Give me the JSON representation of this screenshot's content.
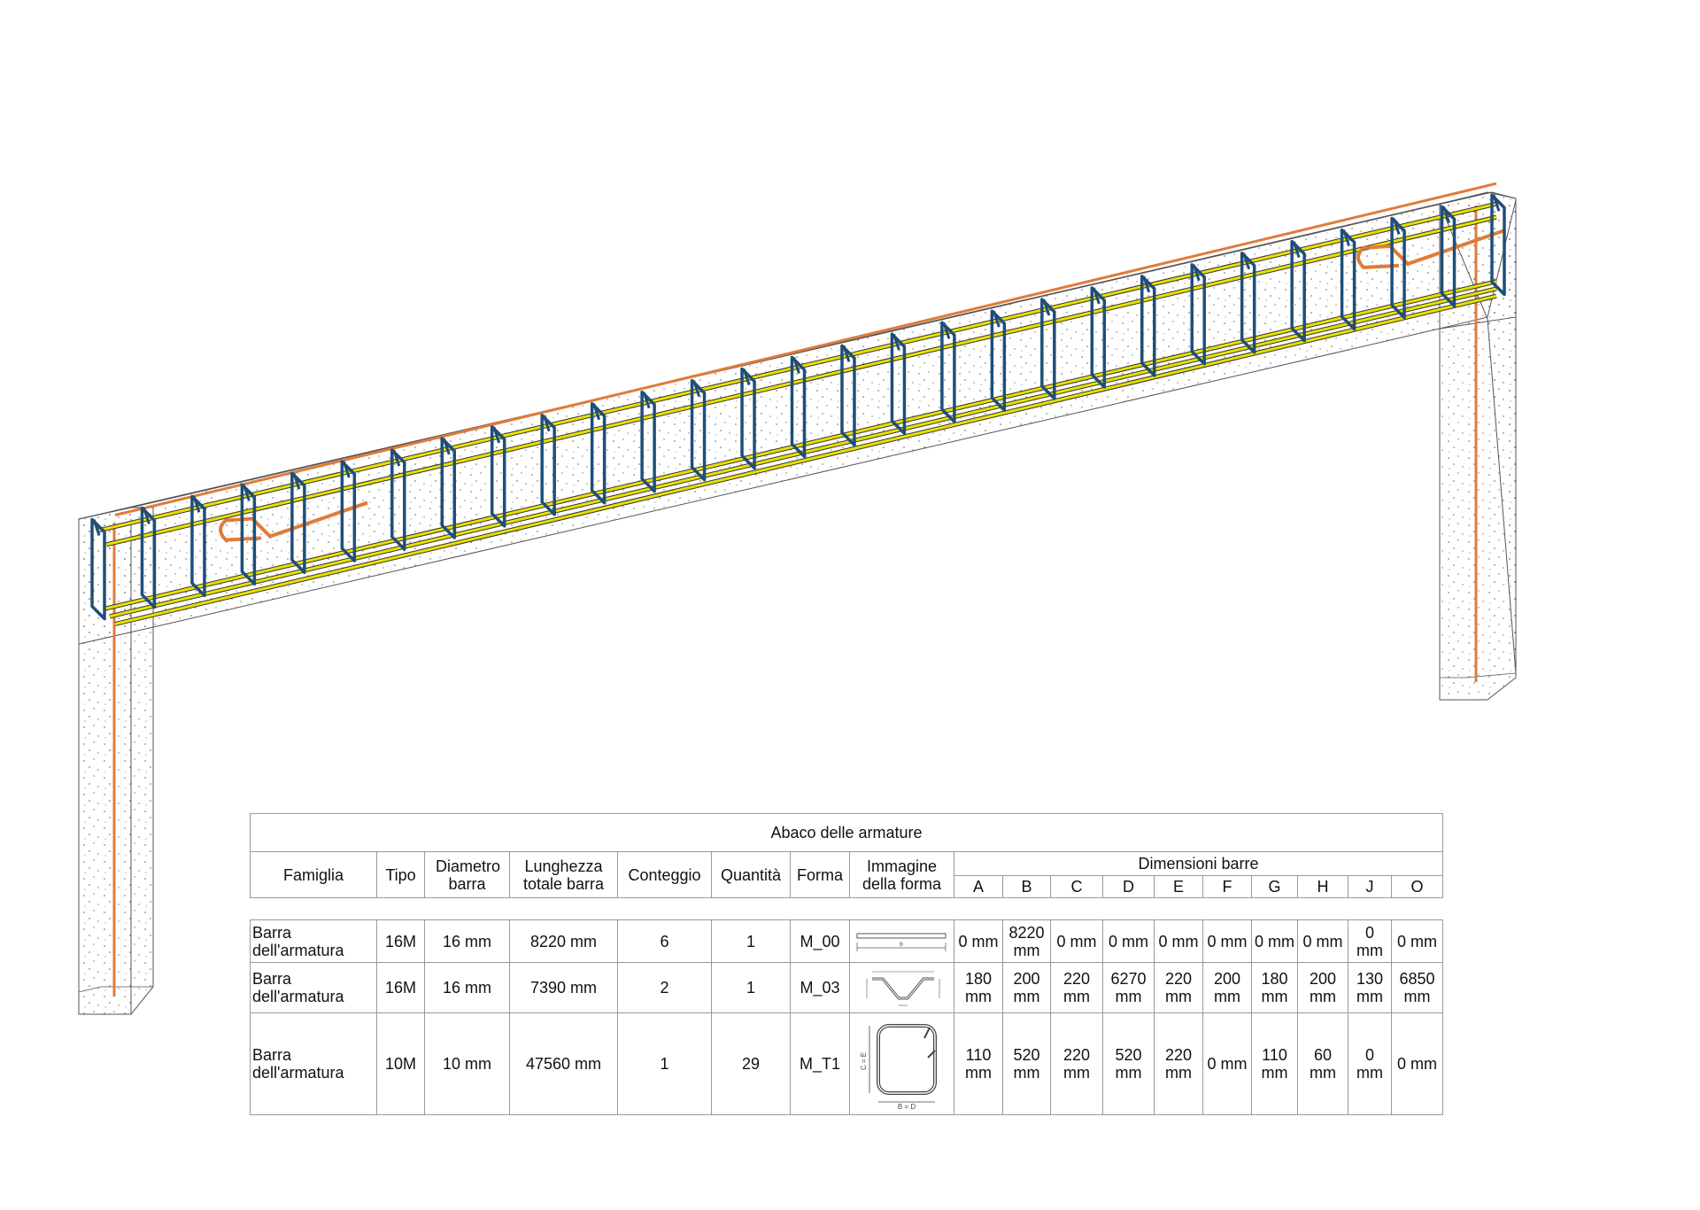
{
  "schedule": {
    "title": "Abaco delle armature",
    "headers": {
      "famiglia": "Famiglia",
      "tipo": "Tipo",
      "diametro": "Diametro barra",
      "lunghezza": "Lunghezza totale barra",
      "conteggio": "Conteggio",
      "quantita": "Quantità",
      "forma": "Forma",
      "immagine": "Immagine della forma",
      "dimensioni": "Dimensioni barre",
      "dims": [
        "A",
        "B",
        "C",
        "D",
        "E",
        "F",
        "G",
        "H",
        "J",
        "O"
      ]
    },
    "rows": [
      {
        "famiglia": "Barra dell'armatura",
        "tipo": "16M",
        "diametro": "16 mm",
        "lunghezza": "8220 mm",
        "conteggio": "6",
        "quantita": "1",
        "forma": "M_00",
        "shape_icon": "straight-bar-shape",
        "dims": [
          "0 mm",
          "8220 mm",
          "0 mm",
          "0 mm",
          "0 mm",
          "0 mm",
          "0 mm",
          "0 mm",
          "0 mm",
          "0 mm"
        ]
      },
      {
        "famiglia": "Barra dell'armatura",
        "tipo": "16M",
        "diametro": "16 mm",
        "lunghezza": "7390 mm",
        "conteggio": "2",
        "quantita": "1",
        "forma": "M_03",
        "shape_icon": "bent-up-bar-shape",
        "dims": [
          "180 mm",
          "200 mm",
          "220 mm",
          "6270 mm",
          "220 mm",
          "200 mm",
          "180 mm",
          "200 mm",
          "130 mm",
          "6850 mm"
        ]
      },
      {
        "famiglia": "Barra dell'armatura",
        "tipo": "10M",
        "diametro": "10 mm",
        "lunghezza": "47560 mm",
        "conteggio": "1",
        "quantita": "29",
        "forma": "M_T1",
        "shape_icon": "closed-stirrup-shape",
        "dims": [
          "110 mm",
          "520 mm",
          "220 mm",
          "520 mm",
          "220 mm",
          "0 mm",
          "110 mm",
          "60 mm",
          "0 mm",
          "0 mm"
        ]
      }
    ],
    "shape_labels": {
      "m00_b": "B",
      "m_t1_side": "C = E",
      "m_t1_bottom": "B = D"
    }
  },
  "model": {
    "stirrup_count": 29,
    "colors": {
      "stirrup": "#1f4e79",
      "longitudinal": "#e8e000",
      "top_bar": "#e07b39",
      "concrete_edge": "#555555",
      "stipple": "#666666"
    }
  }
}
